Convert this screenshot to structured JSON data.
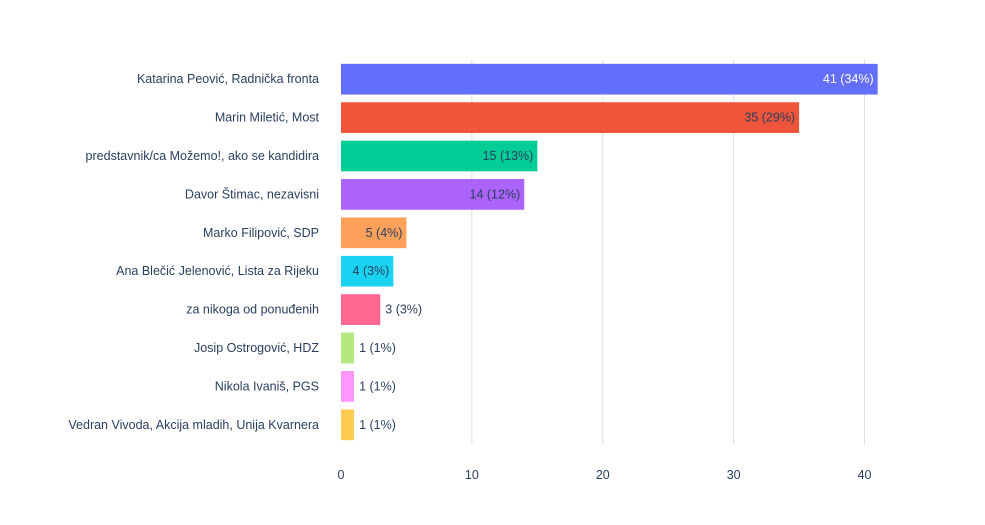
{
  "chart_data": {
    "type": "bar",
    "orientation": "horizontal",
    "title": "",
    "xlabel": "",
    "ylabel": "",
    "xlim": [
      0,
      45
    ],
    "x_ticks": [
      0,
      10,
      20,
      30,
      40
    ],
    "grid": "vertical",
    "categories": [
      "Katarina Peović, Radnička fronta",
      "Marin Miletić, Most",
      "predstavnik/ca Možemo!, ako se kandidira",
      "Davor Štimac, nezavisni",
      "Marko Filipović, SDP",
      "Ana Blečić Jelenović, Lista za Rijeku",
      "za nikoga od ponuđenih",
      "Josip Ostrogović, HDZ",
      "Nikola Ivaniš, PGS",
      "Vedran Vivoda, Akcija mladih, Unija Kvarnera"
    ],
    "values": [
      41,
      35,
      15,
      14,
      5,
      4,
      3,
      1,
      1,
      1
    ],
    "data_labels": [
      "41 (34%)",
      "35 (29%)",
      "15 (13%)",
      "14 (12%)",
      "5 (4%)",
      "4 (3%)",
      "3 (3%)",
      "1 (1%)",
      "1 (1%)",
      "1 (1%)"
    ],
    "colors": [
      "#636efa",
      "#ef553b",
      "#00cc96",
      "#ab63fa",
      "#ffa15a",
      "#19d3f3",
      "#ff6692",
      "#b6e880",
      "#ff97ff",
      "#fecb52"
    ]
  }
}
